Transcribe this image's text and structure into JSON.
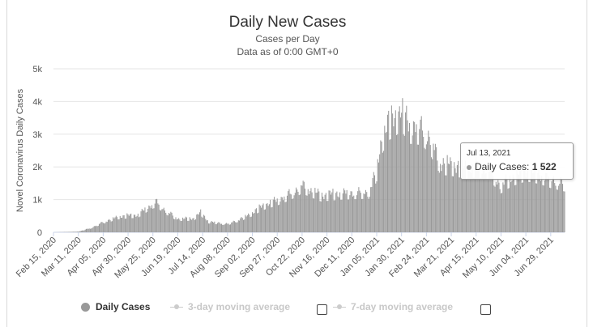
{
  "chart_data": {
    "type": "bar",
    "title": "Daily New Cases",
    "subtitle_lines": [
      "Cases per Day",
      "Data as of 0:00 GMT+0"
    ],
    "ylabel": "Novel Coronavirus Daily Cases",
    "xlabel": "",
    "ylim": [
      0,
      5000
    ],
    "yticks": [
      0,
      1000,
      2000,
      3000,
      4000,
      5000
    ],
    "ytick_labels": [
      "0",
      "1k",
      "2k",
      "3k",
      "4k",
      "5k"
    ],
    "grid": true,
    "x_tick_labels": [
      "Feb 15, 2020",
      "Mar 11, 2020",
      "Apr 05, 2020",
      "Apr 30, 2020",
      "May 25, 2020",
      "Jun 19, 2020",
      "Jul 14, 2020",
      "Aug 08, 2020",
      "Sep 02, 2020",
      "Sep 27, 2020",
      "Oct 22, 2020",
      "Nov 16, 2020",
      "Dec 11, 2020",
      "Jan 05, 2021",
      "Jan 30, 2021",
      "Feb 24, 2021",
      "Mar 21, 2021",
      "Apr 15, 2021",
      "May 10, 2021",
      "Jun 04, 2021",
      "Jun 29, 2021"
    ],
    "start_date": "Feb 15, 2020",
    "end_date": "Jul 13, 2021",
    "interval_days": 1,
    "series": [
      {
        "name": "Daily Cases",
        "color": "#999999",
        "anchors": [
          [
            "Feb 15, 2020",
            0
          ],
          [
            "Mar 11, 2020",
            20
          ],
          [
            "Mar 25, 2020",
            150
          ],
          [
            "Apr 05, 2020",
            320
          ],
          [
            "Apr 20, 2020",
            480
          ],
          [
            "Apr 30, 2020",
            520
          ],
          [
            "May 10, 2020",
            540
          ],
          [
            "May 20, 2020",
            780
          ],
          [
            "May 28, 2020",
            940
          ],
          [
            "Jun 08, 2020",
            650
          ],
          [
            "Jun 19, 2020",
            420
          ],
          [
            "Jul 05, 2020",
            430
          ],
          [
            "Jul 12, 2020",
            620
          ],
          [
            "Jul 20, 2020",
            330
          ],
          [
            "Aug 08, 2020",
            260
          ],
          [
            "Aug 20, 2020",
            400
          ],
          [
            "Sep 02, 2020",
            600
          ],
          [
            "Sep 12, 2020",
            820
          ],
          [
            "Sep 27, 2020",
            1000
          ],
          [
            "Oct 10, 2020",
            1200
          ],
          [
            "Oct 22, 2020",
            1450
          ],
          [
            "Oct 28, 2020",
            1350
          ],
          [
            "Nov 10, 2020",
            1150
          ],
          [
            "Nov 25, 2020",
            1200
          ],
          [
            "Dec 11, 2020",
            1230
          ],
          [
            "Dec 28, 2020",
            1250
          ],
          [
            "Jan 05, 2021",
            1900
          ],
          [
            "Jan 10, 2021",
            2900
          ],
          [
            "Jan 18, 2021",
            3450
          ],
          [
            "Jan 30, 2021",
            3750
          ],
          [
            "Feb 08, 2021",
            3300
          ],
          [
            "Feb 20, 2021",
            3250
          ],
          [
            "Mar 01, 2021",
            2800
          ],
          [
            "Mar 10, 2021",
            2150
          ],
          [
            "Mar 21, 2021",
            2100
          ],
          [
            "Apr 05, 2021",
            2000
          ],
          [
            "Apr 15, 2021",
            2050
          ],
          [
            "Apr 28, 2021",
            1950
          ],
          [
            "May 10, 2021",
            1450
          ],
          [
            "May 20, 2021",
            1700
          ],
          [
            "Jun 04, 2021",
            1900
          ],
          [
            "Jun 18, 2021",
            1800
          ],
          [
            "Jun 29, 2021",
            1650
          ],
          [
            "Jul 13, 2021",
            1522
          ]
        ]
      },
      {
        "name": "3-day moving average",
        "visible": false
      },
      {
        "name": "7-day moving average",
        "visible": false
      }
    ],
    "tooltip": {
      "date": "Jul 13, 2021",
      "series": "Daily Cases",
      "value": "1 522"
    },
    "legend": {
      "position": "bottom"
    }
  },
  "tooltip": {
    "date_label": "Jul 13, 2021",
    "series_label": "Daily Cases:",
    "value_label": "1 522"
  },
  "legend": {
    "items": [
      {
        "label": "Daily Cases",
        "active": true
      },
      {
        "label": "3-day moving average",
        "active": false
      },
      {
        "label": "7-day moving average",
        "active": false
      }
    ]
  }
}
